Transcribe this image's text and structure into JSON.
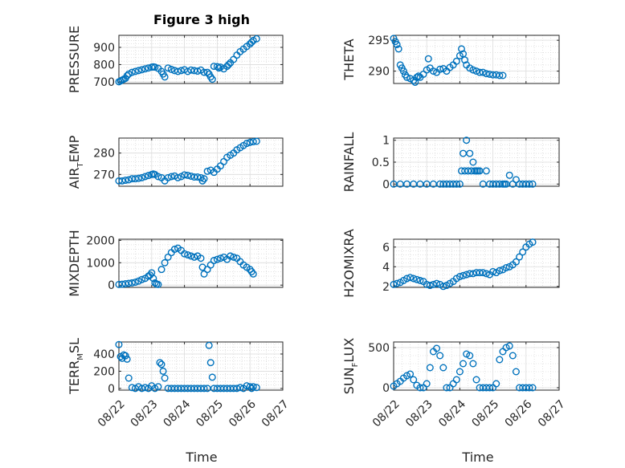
{
  "figure": {
    "title": "Figure 3 high",
    "xlabel": "Time"
  },
  "colors": {
    "marker": "#0072BD",
    "axis": "#262626",
    "grid": "#d0d0d0"
  },
  "chart_data": [
    {
      "type": "scatter",
      "ylabel": "PRESSURE",
      "ylim": [
        690,
        970
      ],
      "yticks": [
        700,
        800,
        900
      ],
      "xlim": [
        0,
        5
      ],
      "xticks": [
        "08/22",
        "08/23",
        "08/24",
        "08/25",
        "08/26",
        "08/27"
      ],
      "show_xtick_labels": false,
      "x": [
        0.0,
        0.05,
        0.1,
        0.15,
        0.2,
        0.25,
        0.3,
        0.4,
        0.5,
        0.6,
        0.7,
        0.8,
        0.9,
        1.0,
        1.05,
        1.1,
        1.2,
        1.3,
        1.35,
        1.4,
        1.5,
        1.6,
        1.7,
        1.8,
        1.9,
        2.0,
        2.1,
        2.2,
        2.3,
        2.4,
        2.5,
        2.6,
        2.7,
        2.75,
        2.8,
        2.85,
        2.9,
        3.0,
        3.05,
        3.1,
        3.2,
        3.3,
        3.35,
        3.4,
        3.5,
        3.6,
        3.7,
        3.8,
        3.9,
        4.0,
        4.05,
        4.1,
        4.2
      ],
      "y": [
        700,
        705,
        710,
        715,
        720,
        735,
        745,
        755,
        760,
        765,
        770,
        775,
        780,
        785,
        787,
        785,
        778,
        760,
        745,
        728,
        780,
        772,
        765,
        760,
        765,
        770,
        760,
        768,
        765,
        762,
        768,
        755,
        755,
        745,
        728,
        715,
        790,
        788,
        780,
        785,
        775,
        790,
        800,
        810,
        830,
        855,
        875,
        890,
        905,
        920,
        930,
        940,
        950
      ]
    },
    {
      "type": "scatter",
      "ylabel": "THETA",
      "ylim": [
        288,
        295.8
      ],
      "yticks": [
        290,
        295
      ],
      "xlim": [
        0,
        5
      ],
      "xticks": [
        "08/22",
        "08/23",
        "08/24",
        "08/25",
        "08/26",
        "08/27"
      ],
      "show_xtick_labels": false,
      "x": [
        0.0,
        0.05,
        0.1,
        0.15,
        0.2,
        0.25,
        0.3,
        0.35,
        0.4,
        0.5,
        0.6,
        0.65,
        0.7,
        0.75,
        0.8,
        0.9,
        1.0,
        1.05,
        1.1,
        1.2,
        1.3,
        1.4,
        1.5,
        1.6,
        1.7,
        1.8,
        1.9,
        2.0,
        2.05,
        2.1,
        2.15,
        2.2,
        2.3,
        2.4,
        2.5,
        2.6,
        2.7,
        2.8,
        2.9,
        3.0,
        3.1,
        3.2,
        3.3
      ],
      "y": [
        295.3,
        294.8,
        294.3,
        293.6,
        291.0,
        290.5,
        290.0,
        289.4,
        289.0,
        288.8,
        288.5,
        288.2,
        289.0,
        289.2,
        289.0,
        289.5,
        290.2,
        292.0,
        290.5,
        290.0,
        289.8,
        290.3,
        290.4,
        290.0,
        290.6,
        291.0,
        291.6,
        292.5,
        293.6,
        292.8,
        291.8,
        291.0,
        290.5,
        290.2,
        290.0,
        289.8,
        289.8,
        289.6,
        289.5,
        289.4,
        289.4,
        289.3,
        289.3
      ]
    },
    {
      "type": "scatter",
      "ylabel": "AIR_TEMP",
      "ylim": [
        264.5,
        287
      ],
      "yticks": [
        270,
        280
      ],
      "xlim": [
        0,
        5
      ],
      "xticks": [
        "08/22",
        "08/23",
        "08/24",
        "08/25",
        "08/26",
        "08/27"
      ],
      "show_xtick_labels": false,
      "x": [
        0.0,
        0.1,
        0.2,
        0.3,
        0.4,
        0.5,
        0.6,
        0.7,
        0.8,
        0.9,
        1.0,
        1.05,
        1.1,
        1.2,
        1.3,
        1.4,
        1.5,
        1.6,
        1.7,
        1.8,
        1.9,
        2.0,
        2.1,
        2.2,
        2.3,
        2.4,
        2.5,
        2.55,
        2.6,
        2.7,
        2.8,
        2.9,
        3.0,
        3.1,
        3.2,
        3.3,
        3.4,
        3.5,
        3.6,
        3.7,
        3.8,
        3.9,
        4.0,
        4.1,
        4.2
      ],
      "y": [
        267,
        267,
        267.3,
        267.5,
        268,
        268,
        268.2,
        268.5,
        269,
        269.5,
        270,
        270.2,
        270,
        269,
        268.5,
        267,
        268.5,
        269,
        269.3,
        268.5,
        269,
        269.8,
        269.6,
        269.2,
        268.8,
        268.8,
        268.5,
        267,
        268,
        271.5,
        272,
        271,
        272.5,
        274,
        276,
        278,
        279,
        280,
        281.5,
        282.5,
        283.5,
        284.5,
        285,
        285.3,
        285.5
      ]
    },
    {
      "type": "scatter",
      "ylabel": "RAINFALL",
      "ylim": [
        -0.05,
        1.05
      ],
      "yticks": [
        0,
        0.5,
        1
      ],
      "xlim": [
        0,
        5
      ],
      "xticks": [
        "08/22",
        "08/23",
        "08/24",
        "08/25",
        "08/26",
        "08/27"
      ],
      "show_xtick_labels": false,
      "x": [
        0.0,
        0.2,
        0.4,
        0.6,
        0.8,
        1.0,
        1.2,
        1.4,
        1.5,
        1.6,
        1.7,
        1.8,
        1.9,
        2.0,
        2.05,
        2.1,
        2.15,
        2.2,
        2.25,
        2.3,
        2.35,
        2.4,
        2.45,
        2.5,
        2.55,
        2.6,
        2.7,
        2.8,
        2.9,
        3.0,
        3.1,
        3.2,
        3.3,
        3.35,
        3.4,
        3.5,
        3.6,
        3.7,
        3.8,
        3.9,
        4.0,
        4.1,
        4.2
      ],
      "y": [
        0,
        0,
        0,
        0,
        0,
        0,
        0,
        0,
        0,
        0,
        0,
        0,
        0,
        0,
        0.3,
        0.7,
        0.3,
        1.0,
        0.3,
        0.7,
        0.3,
        0.5,
        0.3,
        0.3,
        0.3,
        0.3,
        0,
        0.3,
        0,
        0,
        0,
        0,
        0,
        0,
        0,
        0.2,
        0,
        0.1,
        0,
        0,
        0,
        0,
        0
      ]
    },
    {
      "type": "scatter",
      "ylabel": "MIXDEPTH",
      "ylim": [
        -100,
        2050
      ],
      "yticks": [
        0,
        1000,
        2000
      ],
      "xlim": [
        0,
        5
      ],
      "xticks": [
        "08/22",
        "08/23",
        "08/24",
        "08/25",
        "08/26",
        "08/27"
      ],
      "show_xtick_labels": false,
      "x": [
        0.0,
        0.1,
        0.2,
        0.3,
        0.4,
        0.5,
        0.6,
        0.7,
        0.8,
        0.9,
        0.95,
        1.0,
        1.05,
        1.1,
        1.15,
        1.2,
        1.3,
        1.4,
        1.5,
        1.6,
        1.7,
        1.8,
        1.9,
        2.0,
        2.1,
        2.2,
        2.3,
        2.4,
        2.5,
        2.55,
        2.6,
        2.7,
        2.8,
        2.9,
        3.0,
        3.1,
        3.2,
        3.3,
        3.4,
        3.5,
        3.6,
        3.7,
        3.8,
        3.9,
        4.0,
        4.05,
        4.1
      ],
      "y": [
        30,
        40,
        60,
        80,
        100,
        130,
        180,
        250,
        300,
        400,
        450,
        550,
        300,
        100,
        50,
        30,
        700,
        1000,
        1250,
        1450,
        1600,
        1650,
        1550,
        1400,
        1350,
        1300,
        1250,
        1300,
        1200,
        800,
        500,
        700,
        900,
        1100,
        1150,
        1200,
        1250,
        1150,
        1300,
        1250,
        1200,
        1050,
        900,
        800,
        700,
        600,
        500
      ]
    },
    {
      "type": "scatter",
      "ylabel": "H2OMIXRA",
      "ylim": [
        1.9,
        6.8
      ],
      "yticks": [
        2,
        4,
        6
      ],
      "xlim": [
        0,
        5
      ],
      "xticks": [
        "08/22",
        "08/23",
        "08/24",
        "08/25",
        "08/26",
        "08/27"
      ],
      "show_xtick_labels": false,
      "x": [
        0.0,
        0.1,
        0.2,
        0.3,
        0.4,
        0.5,
        0.6,
        0.7,
        0.8,
        0.9,
        1.0,
        1.1,
        1.2,
        1.3,
        1.4,
        1.5,
        1.6,
        1.7,
        1.8,
        1.9,
        2.0,
        2.1,
        2.2,
        2.3,
        2.4,
        2.5,
        2.6,
        2.7,
        2.8,
        2.9,
        3.0,
        3.1,
        3.2,
        3.3,
        3.4,
        3.5,
        3.6,
        3.7,
        3.8,
        3.9,
        4.0,
        4.1,
        4.2
      ],
      "y": [
        2.2,
        2.3,
        2.4,
        2.6,
        2.8,
        2.9,
        2.8,
        2.7,
        2.6,
        2.5,
        2.2,
        2.1,
        2.2,
        2.3,
        2.2,
        2.0,
        2.1,
        2.3,
        2.5,
        2.8,
        3.0,
        3.1,
        3.2,
        3.3,
        3.3,
        3.4,
        3.4,
        3.4,
        3.3,
        3.2,
        3.5,
        3.4,
        3.6,
        3.7,
        3.9,
        4.0,
        4.2,
        4.5,
        5.0,
        5.5,
        6.0,
        6.3,
        6.5
      ]
    },
    {
      "type": "scatter",
      "ylabel": "TERR_MSL",
      "ylim": [
        -20,
        540
      ],
      "yticks": [
        0,
        200,
        400
      ],
      "xlim": [
        0,
        5
      ],
      "xticks": [
        "08/22",
        "08/23",
        "08/24",
        "08/25",
        "08/26",
        "08/27"
      ],
      "show_xtick_labels": true,
      "x": [
        0.0,
        0.05,
        0.1,
        0.15,
        0.2,
        0.25,
        0.3,
        0.4,
        0.5,
        0.6,
        0.7,
        0.8,
        0.9,
        1.0,
        1.1,
        1.2,
        1.25,
        1.3,
        1.35,
        1.4,
        1.5,
        1.6,
        1.7,
        1.8,
        1.9,
        2.0,
        2.1,
        2.2,
        2.3,
        2.4,
        2.5,
        2.6,
        2.7,
        2.75,
        2.8,
        2.85,
        2.9,
        3.0,
        3.1,
        3.2,
        3.3,
        3.4,
        3.5,
        3.6,
        3.7,
        3.8,
        3.9,
        4.0,
        4.05,
        4.1,
        4.2
      ],
      "y": [
        510,
        370,
        350,
        390,
        380,
        340,
        120,
        10,
        0,
        20,
        0,
        10,
        0,
        30,
        0,
        20,
        300,
        280,
        200,
        120,
        0,
        0,
        0,
        0,
        0,
        0,
        0,
        0,
        0,
        0,
        0,
        0,
        0,
        500,
        300,
        130,
        0,
        0,
        0,
        0,
        0,
        0,
        0,
        0,
        10,
        0,
        30,
        20,
        0,
        20,
        10
      ]
    },
    {
      "type": "scatter",
      "ylabel": "SUN_FLUX",
      "ylim": [
        -30,
        570
      ],
      "yticks": [
        0,
        500
      ],
      "xlim": [
        0,
        5
      ],
      "xticks": [
        "08/22",
        "08/23",
        "08/24",
        "08/25",
        "08/26",
        "08/27"
      ],
      "show_xtick_labels": true,
      "x": [
        0.0,
        0.1,
        0.2,
        0.3,
        0.4,
        0.5,
        0.6,
        0.7,
        0.8,
        0.9,
        1.0,
        1.1,
        1.2,
        1.3,
        1.4,
        1.5,
        1.6,
        1.7,
        1.8,
        1.9,
        2.0,
        2.1,
        2.2,
        2.3,
        2.4,
        2.5,
        2.6,
        2.7,
        2.8,
        2.9,
        3.0,
        3.1,
        3.2,
        3.3,
        3.4,
        3.5,
        3.6,
        3.7,
        3.8,
        3.9,
        4.0,
        4.1,
        4.2
      ],
      "y": [
        20,
        50,
        80,
        120,
        150,
        170,
        100,
        30,
        0,
        0,
        50,
        250,
        450,
        490,
        400,
        250,
        0,
        0,
        50,
        100,
        200,
        300,
        420,
        400,
        300,
        100,
        0,
        0,
        0,
        0,
        0,
        50,
        350,
        450,
        500,
        520,
        400,
        200,
        0,
        0,
        0,
        0,
        0
      ]
    }
  ]
}
